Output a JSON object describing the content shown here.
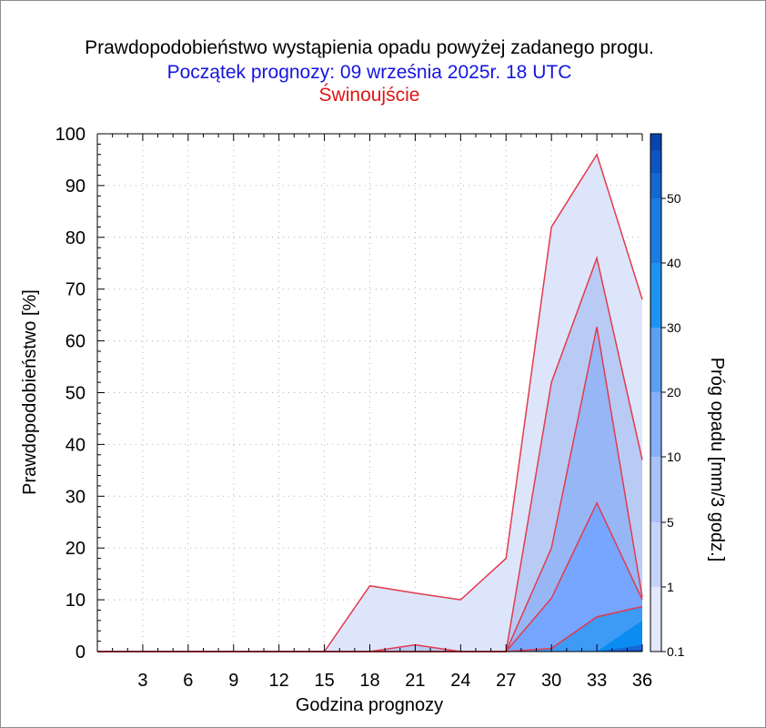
{
  "chart_data": {
    "type": "area",
    "title": "Prawdopodobieństwo wystąpienia opadu powyżej zadanego progu.",
    "subtitle": "Początek prognozy: 09 września 2025r. 18 UTC",
    "location": "Świnoujście",
    "xlabel": "Godzina prognozy",
    "ylabel": "Prawdopodobieństwo [%]",
    "colorbar_label": "Próg opadu [mm/3 godz.]",
    "xlim": [
      0,
      36
    ],
    "ylim": [
      0,
      100
    ],
    "x_ticks": [
      3,
      6,
      9,
      12,
      15,
      18,
      21,
      24,
      27,
      30,
      33,
      36
    ],
    "y_ticks": [
      0,
      10,
      20,
      30,
      40,
      50,
      60,
      70,
      80,
      90,
      100
    ],
    "grid": true,
    "x": [
      0,
      3,
      6,
      9,
      12,
      15,
      18,
      21,
      24,
      27,
      30,
      33,
      36
    ],
    "series": [
      {
        "threshold": "0.1",
        "color": "#dde5fa",
        "values": [
          0,
          0,
          0,
          0,
          0,
          0,
          12.7,
          11.3,
          10,
          18,
          82,
          96,
          68
        ]
      },
      {
        "threshold": "1",
        "color": "#b9cbf5",
        "values": [
          0,
          0,
          0,
          0,
          0,
          0,
          0,
          1.3,
          0,
          0,
          52,
          76,
          37
        ]
      },
      {
        "threshold": "5",
        "color": "#97b6f6",
        "values": [
          0,
          0,
          0,
          0,
          0,
          0,
          0,
          0,
          0,
          0,
          20,
          62.7,
          10.5
        ]
      },
      {
        "threshold": "10",
        "color": "#76a6ff",
        "values": [
          0,
          0,
          0,
          0,
          0,
          0,
          0,
          0,
          0,
          0,
          10.3,
          28.7,
          10
        ]
      },
      {
        "threshold": "20",
        "color": "#3d9af5",
        "values": [
          0,
          0,
          0,
          0,
          0,
          0,
          0,
          0,
          0,
          0,
          0.6,
          6.7,
          8.7
        ]
      },
      {
        "threshold": "30",
        "color": "#0a8cf0",
        "values": [
          0,
          0,
          0,
          0,
          0,
          0,
          0,
          0,
          0,
          0,
          0,
          0,
          6
        ]
      },
      {
        "threshold": "40",
        "color": "#1668d4",
        "values": [
          0,
          0,
          0,
          0,
          0,
          0,
          0,
          0,
          0,
          0,
          0,
          0,
          1.3
        ]
      },
      {
        "threshold": "50",
        "color": "#0a46b4",
        "values": [
          0,
          0,
          0,
          0,
          0,
          0,
          0,
          0,
          0,
          0,
          0,
          0,
          0.3
        ]
      }
    ],
    "line_color": "#e33a4c",
    "colorbar": {
      "labels": [
        "0.1",
        "1",
        "5",
        "10",
        "20",
        "30",
        "40",
        "50"
      ],
      "colors": [
        "#e2e8fa",
        "#c6d3f8",
        "#a8c2f9",
        "#86b0fb",
        "#5aa1f4",
        "#1d93f0",
        "#1a7ce2",
        "#1368d2",
        "#0d55c2",
        "#0844ad"
      ]
    }
  }
}
